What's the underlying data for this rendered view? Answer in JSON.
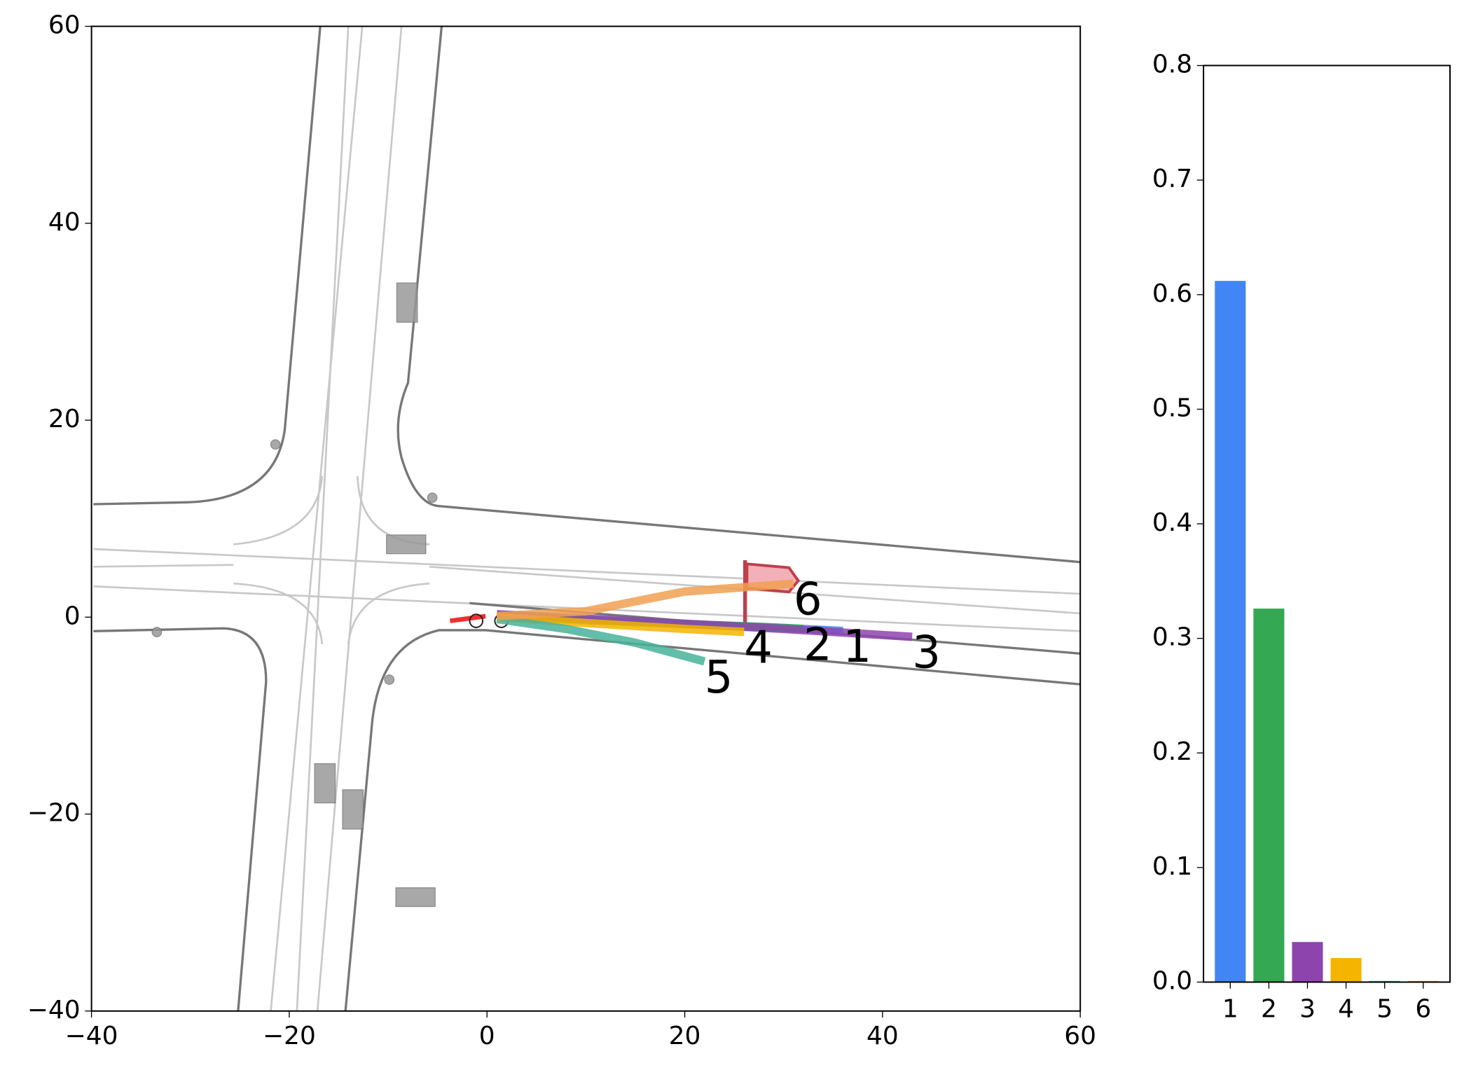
{
  "chart_data": [
    {
      "type": "line",
      "xlim": [
        -40,
        60
      ],
      "ylim": [
        -40,
        60
      ],
      "xticks": [
        {
          "value": -40,
          "label": "−40"
        },
        {
          "value": -20,
          "label": "−20"
        },
        0,
        20,
        40,
        60
      ],
      "yticks": [
        {
          "value": -40,
          "label": "−40"
        },
        {
          "value": -20,
          "label": "−20"
        },
        0,
        20,
        40,
        60
      ],
      "series": [
        {
          "name": "1",
          "color": "#4285f4",
          "x": [
            1,
            10,
            20,
            30,
            36
          ],
          "y": [
            0.2,
            -0.3,
            -0.7,
            -1.1,
            -1.4
          ]
        },
        {
          "name": "2",
          "color": "#34a853",
          "x": [
            1,
            10,
            20,
            28,
            32
          ],
          "y": [
            0.1,
            -0.3,
            -0.7,
            -1.0,
            -1.2
          ]
        },
        {
          "name": "3",
          "color": "#8e44ad",
          "x": [
            1,
            15,
            30,
            43
          ],
          "y": [
            0.3,
            -0.4,
            -1.2,
            -2.0
          ]
        },
        {
          "name": "4",
          "color": "#f4b400",
          "x": [
            1,
            10,
            20,
            26
          ],
          "y": [
            0.0,
            -0.6,
            -1.2,
            -1.5
          ]
        },
        {
          "name": "5",
          "color": "#48b39a",
          "x": [
            1,
            8,
            15,
            22
          ],
          "y": [
            -0.2,
            -1.2,
            -2.6,
            -4.5
          ]
        },
        {
          "name": "6",
          "color": "#f0a050",
          "x": [
            1,
            10,
            20,
            31
          ],
          "y": [
            0.1,
            0.6,
            2.6,
            3.4
          ]
        }
      ]
    },
    {
      "type": "bar",
      "categories": [
        "1",
        "2",
        "3",
        "4",
        "5",
        "6"
      ],
      "values": [
        0.612,
        0.326,
        0.035,
        0.021,
        0.001,
        0.001
      ],
      "colors": [
        "#4285f4",
        "#34a853",
        "#8e44ad",
        "#f4b400",
        "#48b39a",
        "#f0a050"
      ],
      "ylim": [
        0,
        0.8
      ],
      "yticks": [
        {
          "value": 0,
          "label": "0.0"
        },
        0.1,
        0.2,
        0.3,
        0.4,
        0.5,
        0.6,
        0.7,
        0.8
      ]
    }
  ]
}
